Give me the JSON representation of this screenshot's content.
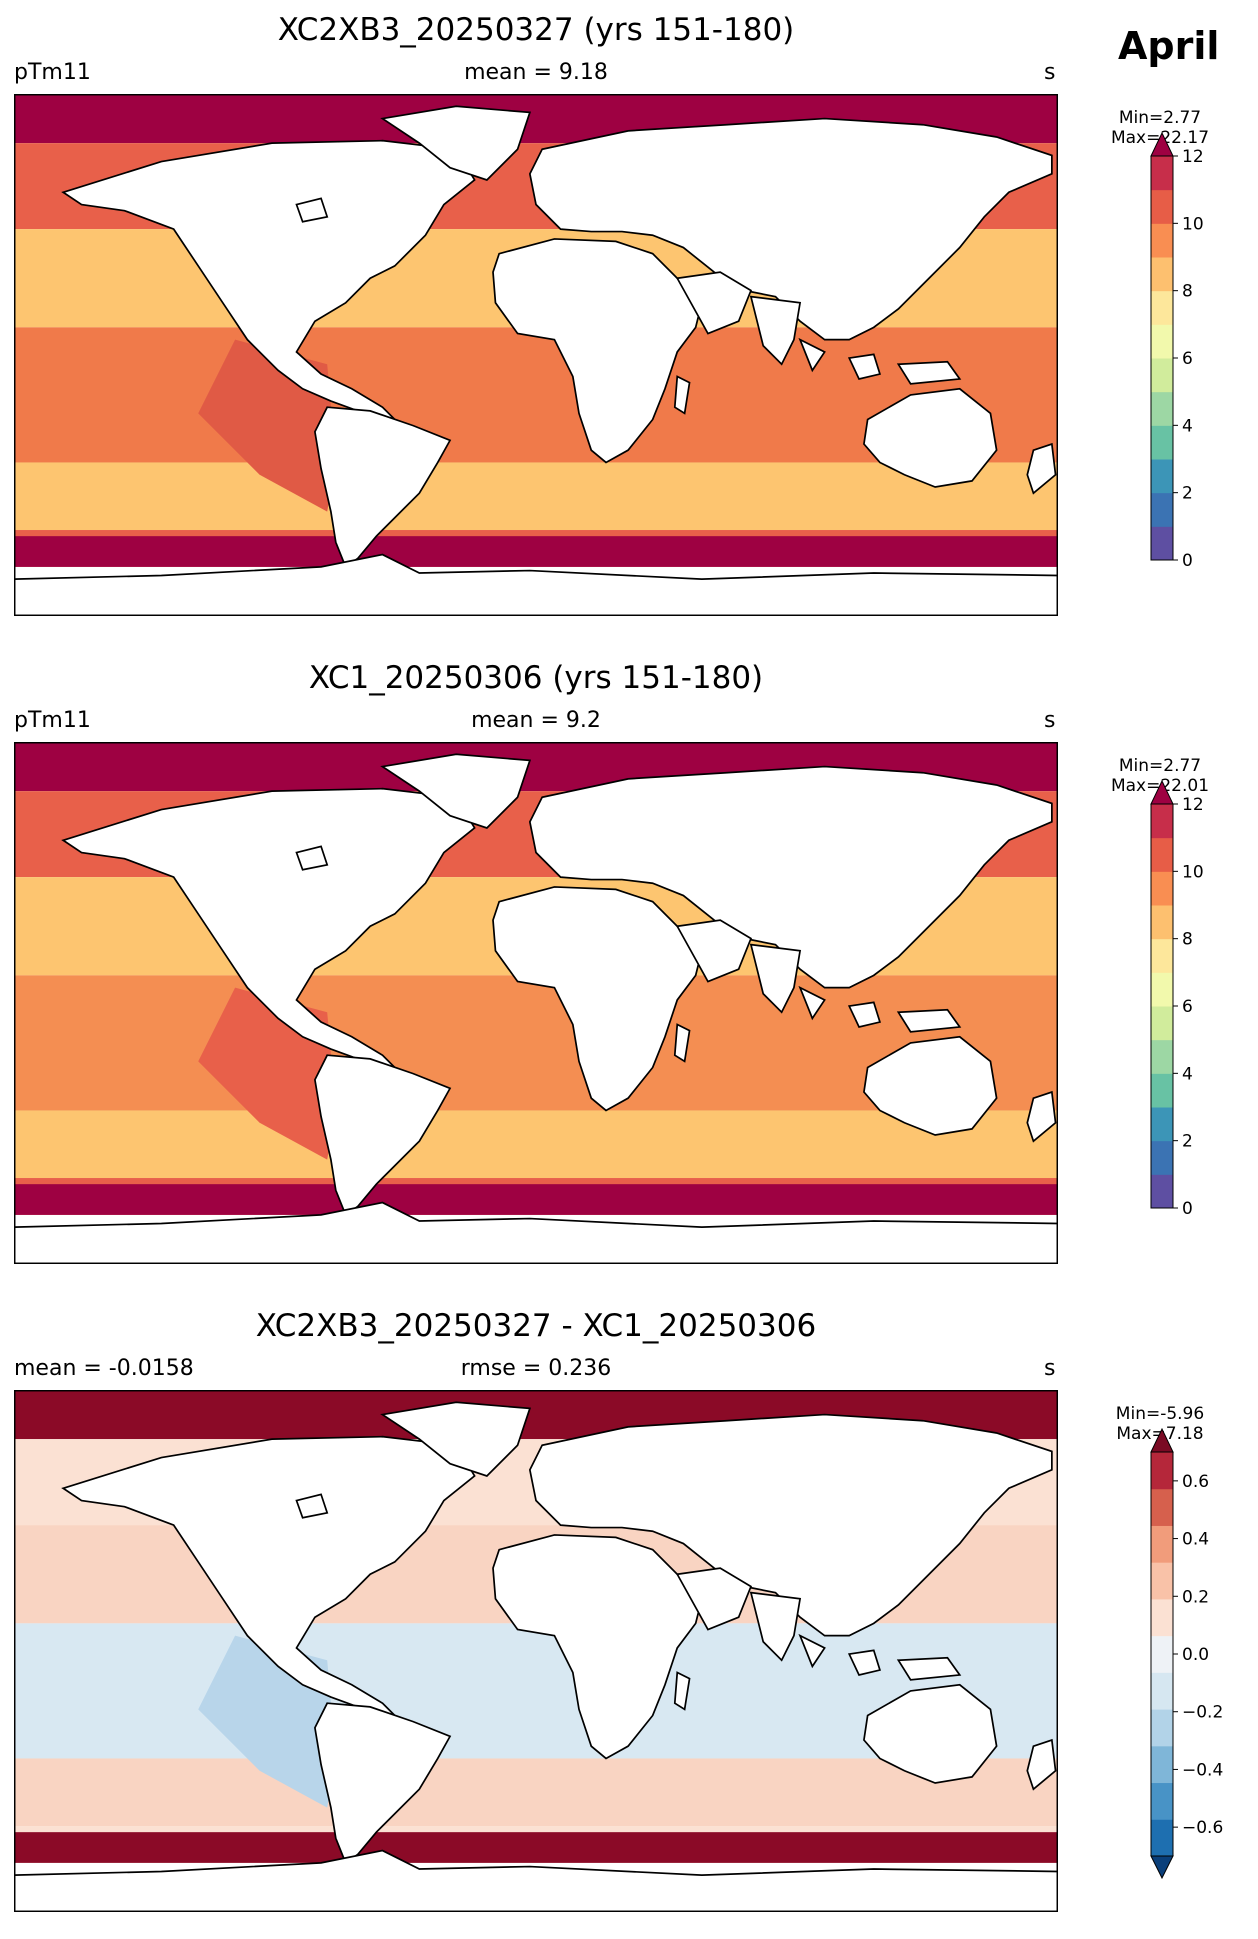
{
  "month": "April",
  "land_color": "#ffffff",
  "panels": [
    {
      "title": "XC2XB3_20250327 (yrs 151-180)",
      "left_label": "pTm11",
      "center_label": "mean = 9.18",
      "units": "s",
      "stats": {
        "min": "Min=2.77",
        "max": "Max=22.17"
      },
      "colorbar": {
        "colors": [
          "#5e4fa2",
          "#3b73b3",
          "#3c95b7",
          "#68c2a4",
          "#9dd7a4",
          "#d1ec9c",
          "#f2f9ac",
          "#fde79b",
          "#fdc06f",
          "#f98e52",
          "#e75d47",
          "#c72e4a",
          "#9e0142"
        ],
        "ticks": [
          "0",
          "2",
          "4",
          "6",
          "8",
          "10",
          "12"
        ]
      },
      "ocean": {
        "low_lat": "#f07a4a",
        "mid_lat": "#fdc570",
        "high_lat": "#e8604a",
        "polar": "#9e0142",
        "pacific_east": "#e05a45"
      }
    },
    {
      "title": "XC1_20250306 (yrs 151-180)",
      "left_label": "pTm11",
      "center_label": "mean = 9.2",
      "units": "s",
      "stats": {
        "min": "Min=2.77",
        "max": "Max=22.01"
      },
      "colorbar": {
        "colors": [
          "#5e4fa2",
          "#3b73b3",
          "#3c95b7",
          "#68c2a4",
          "#9dd7a4",
          "#d1ec9c",
          "#f2f9ac",
          "#fde79b",
          "#fdc06f",
          "#f98e52",
          "#e75d47",
          "#c72e4a",
          "#9e0142"
        ],
        "ticks": [
          "0",
          "2",
          "4",
          "6",
          "8",
          "10",
          "12"
        ]
      },
      "ocean": {
        "low_lat": "#f48e52",
        "mid_lat": "#fdc570",
        "high_lat": "#e8604a",
        "polar": "#9e0142",
        "pacific_east": "#e8604a"
      }
    },
    {
      "title": "XC2XB3_20250327 - XC1_20250306",
      "left_label": "mean = -0.0158",
      "center_label": "rmse = 0.236",
      "units": "s",
      "stats": {
        "min": "Min=-5.96",
        "max": "Max=7.18"
      },
      "colorbar": {
        "colors": [
          "#0a3f7a",
          "#1e6fb0",
          "#4893c6",
          "#7fb6d8",
          "#b2d3e8",
          "#d6e7f1",
          "#eef2f6",
          "#fbe1d3",
          "#f9c2a8",
          "#f19c7b",
          "#d6604d",
          "#b5273a",
          "#7a0a24"
        ],
        "ticks": [
          "−0.6",
          "−0.4",
          "−0.2",
          "0.0",
          "0.2",
          "0.4",
          "0.6"
        ]
      },
      "ocean": {
        "low_lat": "#d8e8f2",
        "mid_lat": "#f9d4c2",
        "high_lat": "#fbe1d3",
        "polar": "#8b0a27",
        "pacific_east": "#b8d5ea"
      }
    }
  ]
}
